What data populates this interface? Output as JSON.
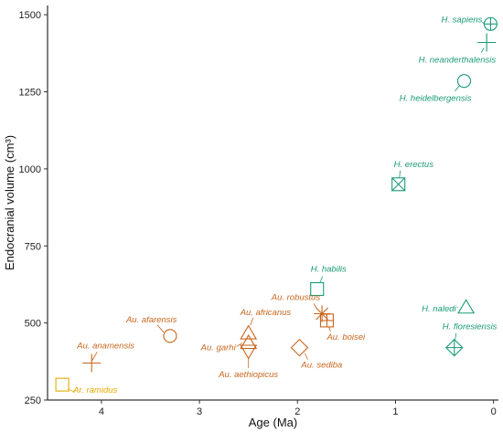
{
  "chart_data": {
    "type": "scatter",
    "xlabel": "Age (Ma)",
    "ylabel": "Endocranial volume (cm³)",
    "x_reversed": true,
    "xlim": [
      4.55,
      -0.05
    ],
    "ylim": [
      250,
      1530
    ],
    "xticks": [
      4,
      3,
      2,
      1,
      0
    ],
    "xtick_labels": [
      "4",
      "3",
      "2",
      "1",
      "0"
    ],
    "yticks": [
      250,
      500,
      750,
      1000,
      1250,
      1500
    ],
    "ytick_labels": [
      "250",
      "500",
      "750",
      "1000",
      "1250",
      "1500"
    ],
    "grid": false,
    "legend": "none",
    "colors": {
      "homo": "#1a9a76",
      "australopithecus": "#c8661e",
      "ardipithecus": "#e6ab02"
    },
    "points": [
      {
        "label": "Ar. ramidus",
        "x": 4.4,
        "y": 300,
        "group": "ardipithecus",
        "shape": "square"
      },
      {
        "label": "Au. anamensis",
        "x": 4.1,
        "y": 370,
        "group": "australopithecus",
        "shape": "plus"
      },
      {
        "label": "Au. afarensis",
        "x": 3.3,
        "y": 458,
        "group": "australopithecus",
        "shape": "circle"
      },
      {
        "label": "Au. africanus",
        "x": 2.5,
        "y": 466,
        "group": "australopithecus",
        "shape": "triangle-up"
      },
      {
        "label": "Au. garhi",
        "x": 2.5,
        "y": 435,
        "group": "australopithecus",
        "shape": "triangle-up"
      },
      {
        "label": "Au. aethiopicus",
        "x": 2.5,
        "y": 410,
        "group": "australopithecus",
        "shape": "triangle-down"
      },
      {
        "label": "Au. sediba",
        "x": 1.98,
        "y": 420,
        "group": "australopithecus",
        "shape": "diamond"
      },
      {
        "label": "Au. robustus",
        "x": 1.75,
        "y": 530,
        "group": "australopithecus",
        "shape": "asterisk"
      },
      {
        "label": "Au. boisei",
        "x": 1.7,
        "y": 508,
        "group": "australopithecus",
        "shape": "boxplus"
      },
      {
        "label": "H. habilis",
        "x": 1.8,
        "y": 610,
        "group": "homo",
        "shape": "square"
      },
      {
        "label": "H. erectus",
        "x": 0.97,
        "y": 950,
        "group": "homo",
        "shape": "boxtimes"
      },
      {
        "label": "H. naledi",
        "x": 0.28,
        "y": 550,
        "group": "homo",
        "shape": "triangle-up"
      },
      {
        "label": "H. floresiensis",
        "x": 0.4,
        "y": 420,
        "group": "homo",
        "shape": "diamondplus"
      },
      {
        "label": "H. heidelbergensis",
        "x": 0.3,
        "y": 1285,
        "group": "homo",
        "shape": "circle"
      },
      {
        "label": "H. neanderthalensis",
        "x": 0.07,
        "y": 1410,
        "group": "homo",
        "shape": "plus"
      },
      {
        "label": "H. sapiens",
        "x": 0.03,
        "y": 1470,
        "group": "homo",
        "shape": "circleplus"
      }
    ]
  }
}
